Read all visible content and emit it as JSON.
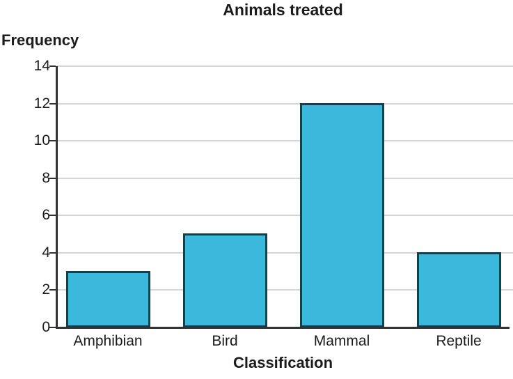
{
  "chart_data": {
    "type": "bar",
    "title": "Animals treated",
    "xlabel": "Classification",
    "ylabel": "Frequency",
    "categories": [
      "Amphibian",
      "Bird",
      "Mammal",
      "Reptile"
    ],
    "values": [
      3,
      5,
      12,
      4
    ],
    "ylim": [
      0,
      14
    ],
    "yticks": [
      0,
      2,
      4,
      6,
      8,
      10,
      12,
      14
    ],
    "grid": "horizontal",
    "legend": "none",
    "colors": {
      "bar_fill": "#3cb8dc",
      "bar_stroke": "#173e4e",
      "axis": "#333333",
      "gridline": "#d4d4d4",
      "text": "#1c1c1c"
    }
  }
}
